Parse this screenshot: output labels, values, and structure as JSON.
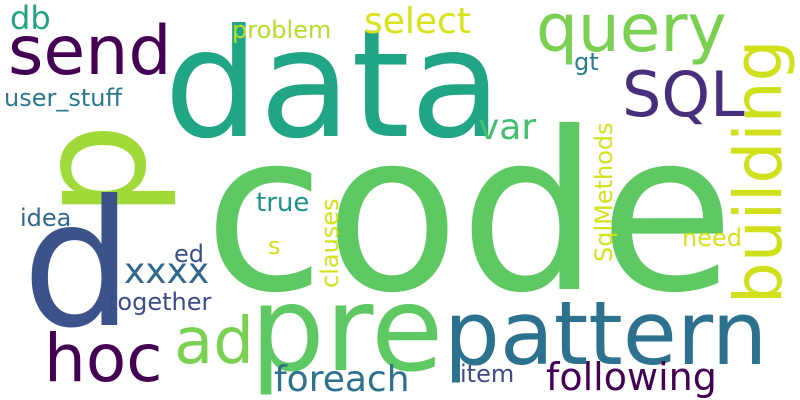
{
  "word_cloud": {
    "words": [
      {
        "text": "code",
        "color": "#5ec962"
      },
      {
        "text": "data",
        "color": "#21a685"
      },
      {
        "text": "p",
        "color": "#a0da39"
      },
      {
        "text": "d",
        "color": "#3b528b"
      },
      {
        "text": "pre",
        "color": "#5ec962"
      },
      {
        "text": "pattern",
        "color": "#2c728e"
      },
      {
        "text": "send",
        "color": "#440154"
      },
      {
        "text": "query",
        "color": "#7ad151"
      },
      {
        "text": "SQL",
        "color": "#472f7d"
      },
      {
        "text": "building",
        "color": "#d0e11c"
      },
      {
        "text": "hoc",
        "color": "#440154"
      },
      {
        "text": "ad",
        "color": "#7ad151"
      },
      {
        "text": "following",
        "color": "#440154"
      },
      {
        "text": "foreach",
        "color": "#2c728e"
      },
      {
        "text": "xxxx",
        "color": "#31688e"
      },
      {
        "text": "select",
        "color": "#d8e219"
      },
      {
        "text": "var",
        "color": "#44bf70"
      },
      {
        "text": "db",
        "color": "#20a486"
      },
      {
        "text": "user_stuff",
        "color": "#2a788e"
      },
      {
        "text": "problem",
        "color": "#b5de2b"
      },
      {
        "text": "gt",
        "color": "#287c8e"
      },
      {
        "text": "SqlMethods",
        "color": "#d2e21b"
      },
      {
        "text": "clauses",
        "color": "#d2e21b"
      },
      {
        "text": "true",
        "color": "#20928c"
      },
      {
        "text": "idea",
        "color": "#31688e"
      },
      {
        "text": "ed",
        "color": "#3b528b"
      },
      {
        "text": "s",
        "color": "#d2e21b"
      },
      {
        "text": "need",
        "color": "#d8e219"
      },
      {
        "text": "together",
        "color": "#3e4a89"
      },
      {
        "text": "item",
        "color": "#3e4a89"
      }
    ]
  }
}
